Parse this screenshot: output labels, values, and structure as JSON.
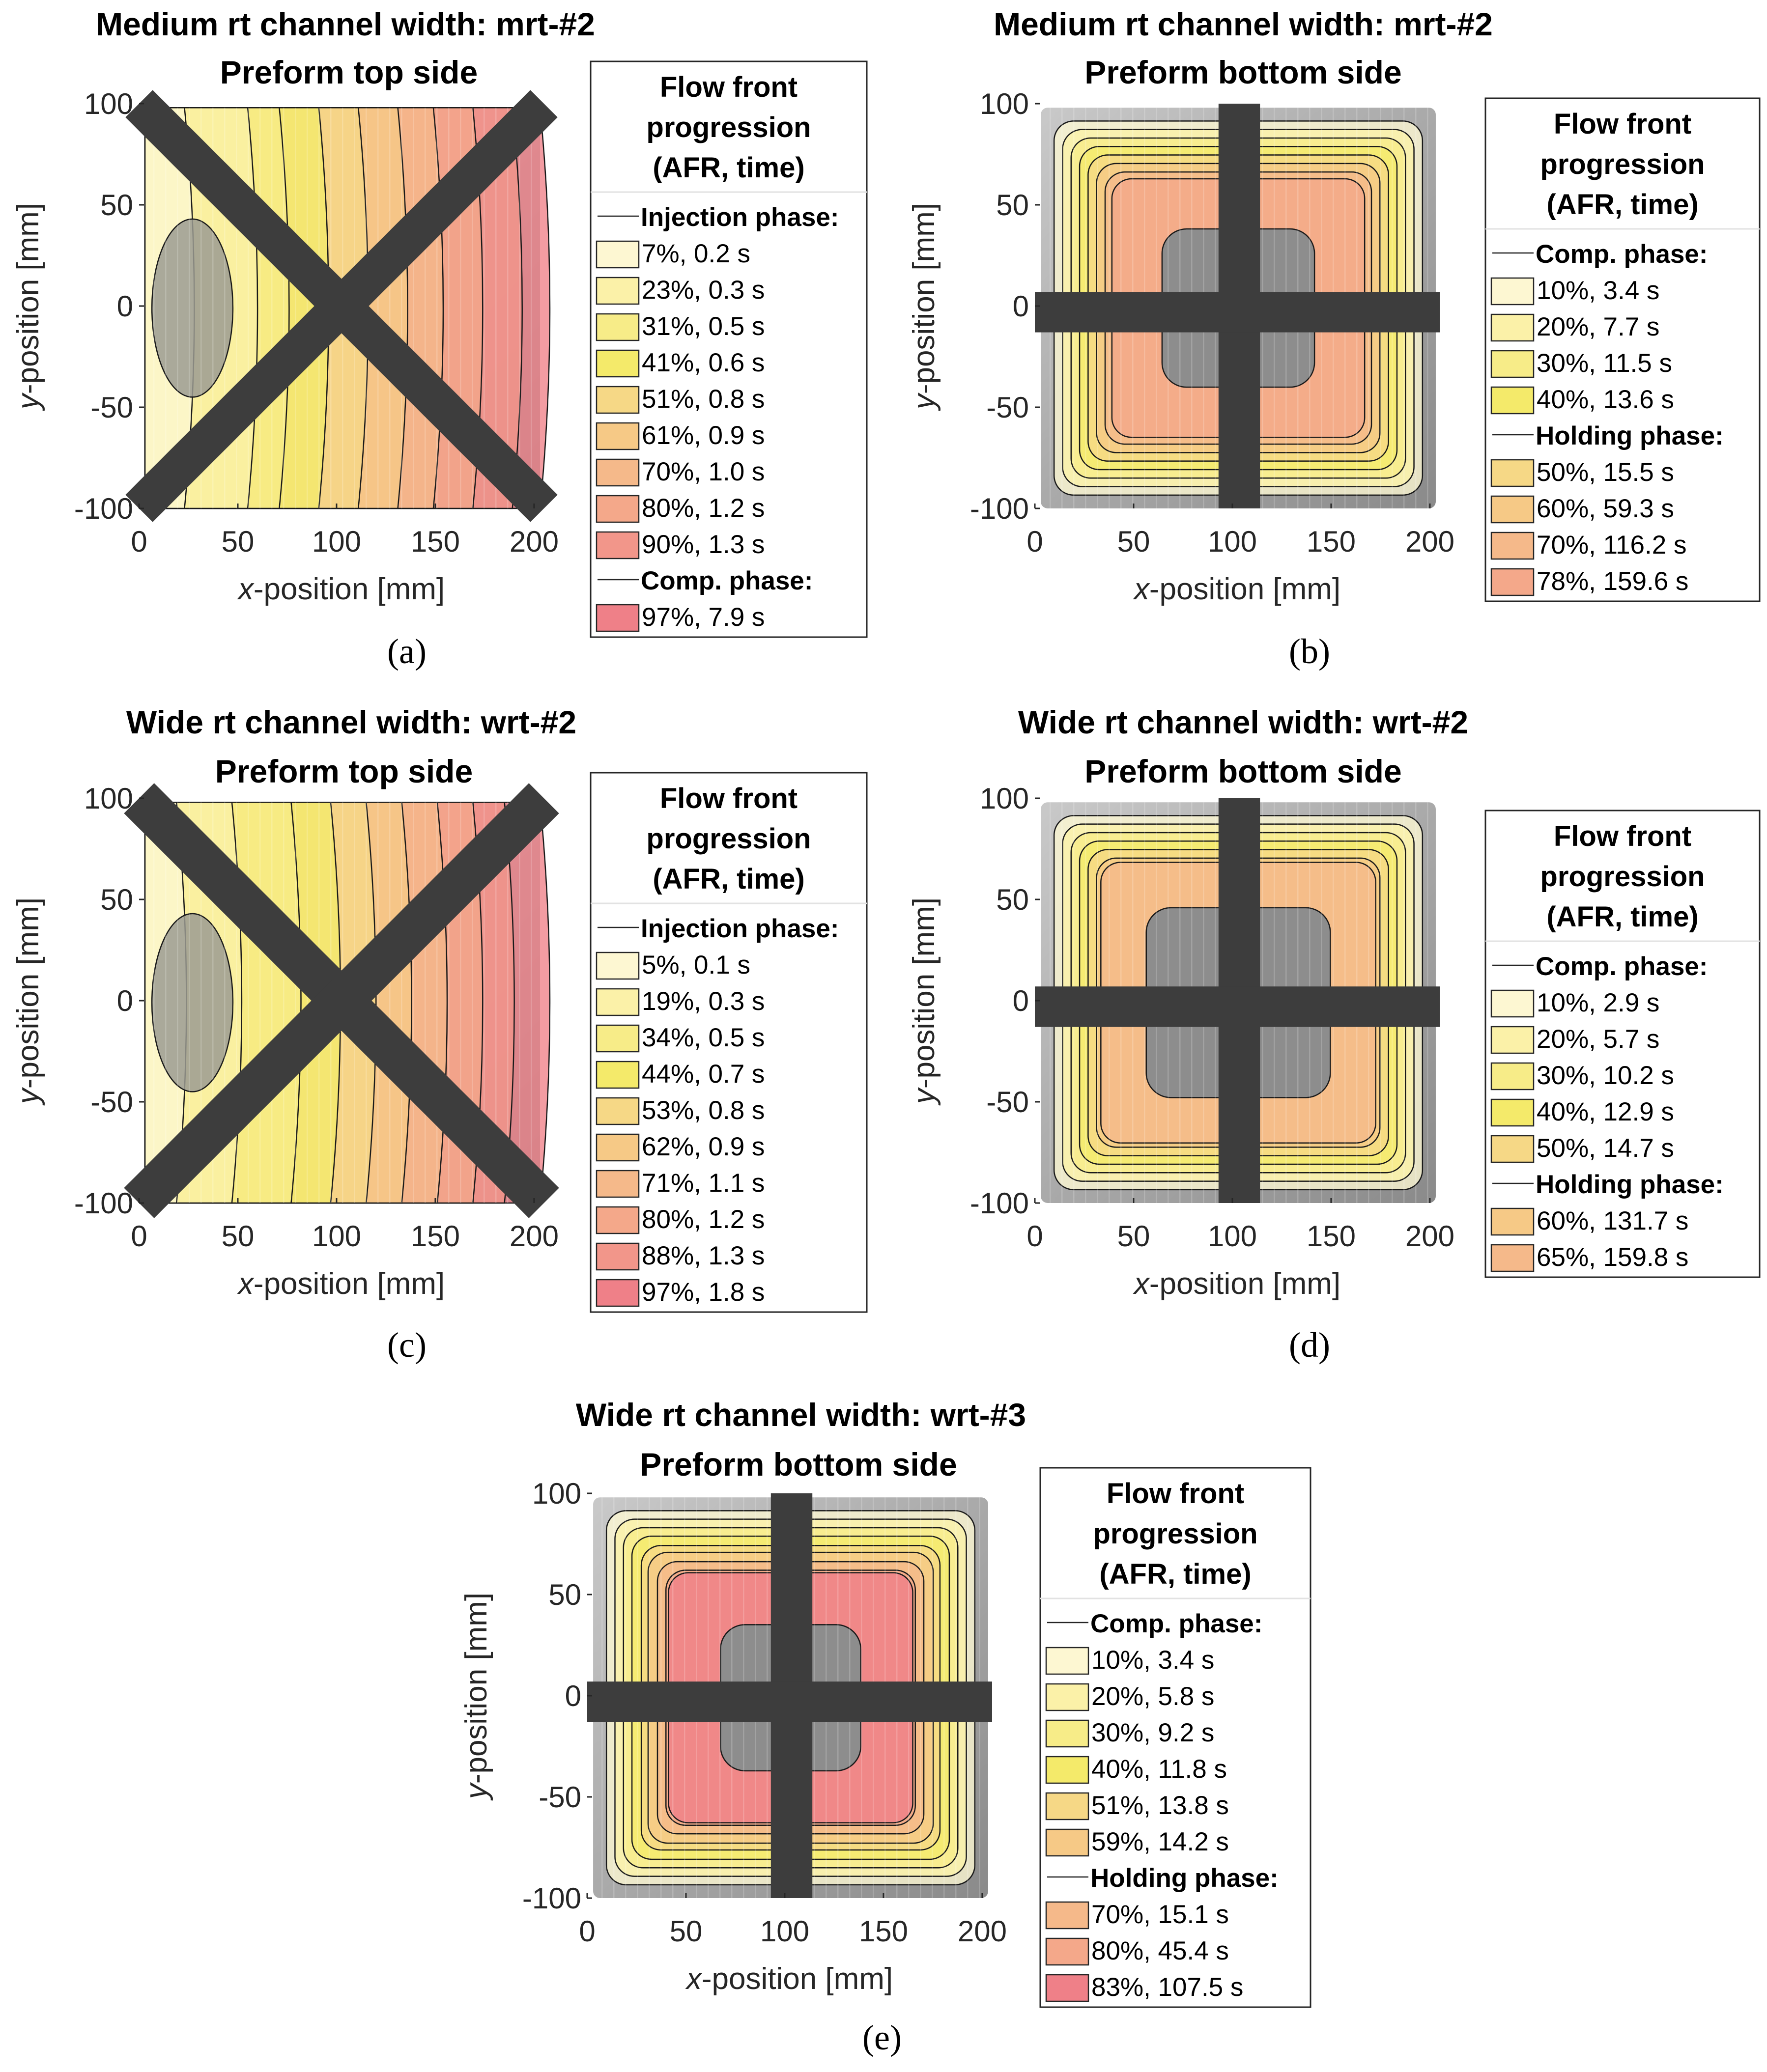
{
  "chart_data": [
    {
      "type": "heatmap",
      "panel_label": "(a)",
      "title": "Medium rt channel width: mrt-#2",
      "subtitle": "Preform top side",
      "xlabel_italic": "x",
      "xlabel_rest": "-position [mm]",
      "ylabel_italic": "y",
      "ylabel_rest": "-position [mm]",
      "xlim": [
        0,
        205
      ],
      "ylim": [
        -100,
        100
      ],
      "xticks": [
        0,
        50,
        100,
        150,
        200
      ],
      "yticks": [
        100,
        50,
        0,
        -50,
        -100
      ],
      "channel_pattern": "diagonal cross",
      "legend": {
        "title_lines": [
          "Flow front",
          "progression",
          "(AFR, time)"
        ],
        "groups": [
          {
            "phase": "Injection phase:",
            "entries": [
              {
                "afr_pct": 7,
                "label": "7%,  0.2 s",
                "color": "#fdf7d2"
              },
              {
                "afr_pct": 23,
                "label": "23%,  0.3 s",
                "color": "#fbf1a8"
              },
              {
                "afr_pct": 31,
                "label": "31%,  0.5 s",
                "color": "#f7ec88"
              },
              {
                "afr_pct": 41,
                "label": "41%,  0.6 s",
                "color": "#f4ea6a"
              },
              {
                "afr_pct": 51,
                "label": "51%,  0.8 s",
                "color": "#f6d886"
              },
              {
                "afr_pct": 61,
                "label": "61%,  0.9 s",
                "color": "#f6c986"
              },
              {
                "afr_pct": 70,
                "label": "70%,  1.0 s",
                "color": "#f5b98a"
              },
              {
                "afr_pct": 80,
                "label": "80%,  1.2 s",
                "color": "#f4a88a"
              },
              {
                "afr_pct": 90,
                "label": "90%,  1.3 s",
                "color": "#f2968a"
              }
            ]
          },
          {
            "phase": "Comp. phase:",
            "entries": [
              {
                "afr_pct": 97,
                "label": "97%,  7.9 s",
                "color": "#ef8088"
              }
            ]
          }
        ]
      }
    },
    {
      "type": "heatmap",
      "panel_label": "(b)",
      "title": "Medium rt channel width: mrt-#2",
      "subtitle": "Preform bottom side",
      "xlabel_italic": "x",
      "xlabel_rest": "-position [mm]",
      "ylabel_italic": "y",
      "ylabel_rest": "-position [mm]",
      "xlim": [
        0,
        205
      ],
      "ylim": [
        -100,
        100
      ],
      "xticks": [
        0,
        50,
        100,
        150,
        200
      ],
      "yticks": [
        100,
        50,
        0,
        -50,
        -100
      ],
      "channel_pattern": "orthogonal cross",
      "legend": {
        "title_lines": [
          "Flow front",
          "progression",
          "(AFR, time)"
        ],
        "groups": [
          {
            "phase": "Comp. phase:",
            "entries": [
              {
                "afr_pct": 10,
                "label": "10%,  3.4 s",
                "color": "#fdf7d2"
              },
              {
                "afr_pct": 20,
                "label": "20%,  7.7 s",
                "color": "#fbf1a8"
              },
              {
                "afr_pct": 30,
                "label": "30%,  11.5 s",
                "color": "#f7ec88"
              },
              {
                "afr_pct": 40,
                "label": "40%,  13.6 s",
                "color": "#f4ea6a"
              }
            ]
          },
          {
            "phase": "Holding phase:",
            "entries": [
              {
                "afr_pct": 50,
                "label": "50%,  15.5 s",
                "color": "#f6d886"
              },
              {
                "afr_pct": 60,
                "label": "60%,  59.3 s",
                "color": "#f6c986"
              },
              {
                "afr_pct": 70,
                "label": "70%,  116.2 s",
                "color": "#f5b98a"
              },
              {
                "afr_pct": 78,
                "label": "78%,  159.6 s",
                "color": "#f4a88a"
              }
            ]
          }
        ]
      }
    },
    {
      "type": "heatmap",
      "panel_label": "(c)",
      "title": "Wide rt channel width: wrt-#2",
      "subtitle": "Preform top side",
      "xlabel_italic": "x",
      "xlabel_rest": "-position [mm]",
      "ylabel_italic": "y",
      "ylabel_rest": "-position [mm]",
      "xlim": [
        0,
        205
      ],
      "ylim": [
        -100,
        100
      ],
      "xticks": [
        0,
        50,
        100,
        150,
        200
      ],
      "yticks": [
        100,
        50,
        0,
        -50,
        -100
      ],
      "channel_pattern": "diagonal cross",
      "legend": {
        "title_lines": [
          "Flow front",
          "progression",
          "(AFR, time)"
        ],
        "groups": [
          {
            "phase": "Injection phase:",
            "entries": [
              {
                "afr_pct": 5,
                "label": "5%,  0.1 s",
                "color": "#fdf7d2"
              },
              {
                "afr_pct": 19,
                "label": "19%,  0.3 s",
                "color": "#fbf1a8"
              },
              {
                "afr_pct": 34,
                "label": "34%,  0.5 s",
                "color": "#f7ec88"
              },
              {
                "afr_pct": 44,
                "label": "44%,  0.7 s",
                "color": "#f4ea6a"
              },
              {
                "afr_pct": 53,
                "label": "53%,  0.8 s",
                "color": "#f6d886"
              },
              {
                "afr_pct": 62,
                "label": "62%,  0.9 s",
                "color": "#f6c986"
              },
              {
                "afr_pct": 71,
                "label": "71%,  1.1 s",
                "color": "#f5b98a"
              },
              {
                "afr_pct": 80,
                "label": "80%,  1.2 s",
                "color": "#f4a88a"
              },
              {
                "afr_pct": 88,
                "label": "88%,  1.3 s",
                "color": "#f2968a"
              },
              {
                "afr_pct": 97,
                "label": "97%,  1.8 s",
                "color": "#ef8088"
              }
            ]
          }
        ]
      }
    },
    {
      "type": "heatmap",
      "panel_label": "(d)",
      "title": "Wide rt channel width: wrt-#2",
      "subtitle": "Preform bottom side",
      "xlabel_italic": "x",
      "xlabel_rest": "-position [mm]",
      "ylabel_italic": "y",
      "ylabel_rest": "-position [mm]",
      "xlim": [
        0,
        205
      ],
      "ylim": [
        -100,
        100
      ],
      "xticks": [
        0,
        50,
        100,
        150,
        200
      ],
      "yticks": [
        100,
        50,
        0,
        -50,
        -100
      ],
      "channel_pattern": "orthogonal cross",
      "legend": {
        "title_lines": [
          "Flow front",
          "progression",
          "(AFR, time)"
        ],
        "groups": [
          {
            "phase": "Comp. phase:",
            "entries": [
              {
                "afr_pct": 10,
                "label": "10%,  2.9 s",
                "color": "#fdf7d2"
              },
              {
                "afr_pct": 20,
                "label": "20%,  5.7 s",
                "color": "#fbf1a8"
              },
              {
                "afr_pct": 30,
                "label": "30%,  10.2 s",
                "color": "#f7ec88"
              },
              {
                "afr_pct": 40,
                "label": "40%,  12.9 s",
                "color": "#f4ea6a"
              },
              {
                "afr_pct": 50,
                "label": "50%,  14.7 s",
                "color": "#f6d886"
              }
            ]
          },
          {
            "phase": "Holding phase:",
            "entries": [
              {
                "afr_pct": 60,
                "label": "60%,  131.7 s",
                "color": "#f6c986"
              },
              {
                "afr_pct": 65,
                "label": "65%,  159.8 s",
                "color": "#f5b98a"
              }
            ]
          }
        ]
      }
    },
    {
      "type": "heatmap",
      "panel_label": "(e)",
      "title": "Wide rt channel width: wrt-#3",
      "subtitle": "Preform bottom side",
      "xlabel_italic": "x",
      "xlabel_rest": "-position [mm]",
      "ylabel_italic": "y",
      "ylabel_rest": "-position [mm]",
      "xlim": [
        0,
        205
      ],
      "ylim": [
        -100,
        100
      ],
      "xticks": [
        0,
        50,
        100,
        150,
        200
      ],
      "yticks": [
        100,
        50,
        0,
        -50,
        -100
      ],
      "channel_pattern": "orthogonal cross",
      "legend": {
        "title_lines": [
          "Flow front",
          "progression",
          "(AFR, time)"
        ],
        "groups": [
          {
            "phase": "Comp. phase:",
            "entries": [
              {
                "afr_pct": 10,
                "label": "10%,  3.4 s",
                "color": "#fdf7d2"
              },
              {
                "afr_pct": 20,
                "label": "20%,  5.8 s",
                "color": "#fbf1a8"
              },
              {
                "afr_pct": 30,
                "label": "30%,  9.2 s",
                "color": "#f7ec88"
              },
              {
                "afr_pct": 40,
                "label": "40%,  11.8 s",
                "color": "#f4ea6a"
              },
              {
                "afr_pct": 51,
                "label": "51%,  13.8 s",
                "color": "#f6d886"
              },
              {
                "afr_pct": 59,
                "label": "59%,  14.2 s",
                "color": "#f6c986"
              }
            ]
          },
          {
            "phase": "Holding phase:",
            "entries": [
              {
                "afr_pct": 70,
                "label": "70%,  15.1 s",
                "color": "#f5b98a"
              },
              {
                "afr_pct": 80,
                "label": "80%,  45.4 s",
                "color": "#f4a88a"
              },
              {
                "afr_pct": 83,
                "label": "83%,  107.5 s",
                "color": "#ef8088"
              }
            ]
          }
        ]
      }
    }
  ]
}
